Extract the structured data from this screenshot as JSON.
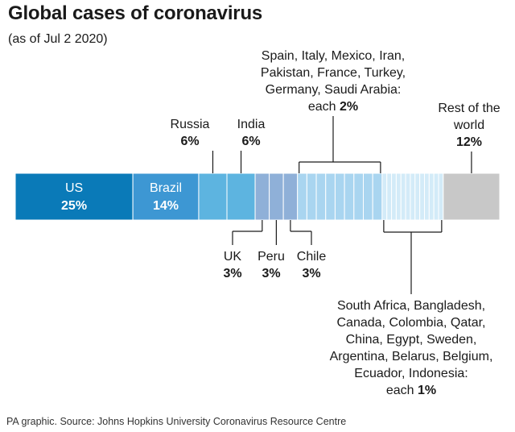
{
  "title": "Global cases of coronavirus",
  "subtitle": "(as of Jul 2 2020)",
  "footer": "PA graphic. Source: Johns Hopkins University Coronavirus Resource Centre",
  "colors": {
    "us": "#0a7ab8",
    "brazil": "#3d97d3",
    "mid": "#5db4e0",
    "uk_peru_chile": "#8fb0d8",
    "two_pct": "#a9d5f0",
    "one_pct": "#d3ebf8",
    "rest": "#c8c8c8",
    "line": "#1a1a1a"
  },
  "chart_data": {
    "type": "bar",
    "orientation": "stacked-horizontal",
    "unit": "%",
    "title": "Global cases of coronavirus",
    "subtitle": "(as of Jul 2 2020)",
    "segments": [
      {
        "name": "US",
        "value": 25,
        "label": "US",
        "value_label": "25%",
        "color_key": "us",
        "label_inside": true
      },
      {
        "name": "Brazil",
        "value": 14,
        "label": "Brazil",
        "value_label": "14%",
        "color_key": "brazil",
        "label_inside": true
      },
      {
        "name": "Russia",
        "value": 6,
        "color_key": "mid"
      },
      {
        "name": "India",
        "value": 6,
        "color_key": "mid"
      },
      {
        "name": "UK",
        "value": 3,
        "color_key": "uk_peru_chile"
      },
      {
        "name": "Peru",
        "value": 3,
        "color_key": "uk_peru_chile"
      },
      {
        "name": "Chile",
        "value": 3,
        "color_key": "uk_peru_chile"
      },
      {
        "name": "Spain",
        "value": 2,
        "color_key": "two_pct"
      },
      {
        "name": "Italy",
        "value": 2,
        "color_key": "two_pct"
      },
      {
        "name": "Mexico",
        "value": 2,
        "color_key": "two_pct"
      },
      {
        "name": "Iran",
        "value": 2,
        "color_key": "two_pct"
      },
      {
        "name": "Pakistan",
        "value": 2,
        "color_key": "two_pct"
      },
      {
        "name": "France",
        "value": 2,
        "color_key": "two_pct"
      },
      {
        "name": "Turkey",
        "value": 2,
        "color_key": "two_pct"
      },
      {
        "name": "Germany",
        "value": 2,
        "color_key": "two_pct"
      },
      {
        "name": "Saudi Arabia",
        "value": 2,
        "color_key": "two_pct"
      },
      {
        "name": "South Africa",
        "value": 1,
        "color_key": "one_pct"
      },
      {
        "name": "Bangladesh",
        "value": 1,
        "color_key": "one_pct"
      },
      {
        "name": "Canada",
        "value": 1,
        "color_key": "one_pct"
      },
      {
        "name": "Colombia",
        "value": 1,
        "color_key": "one_pct"
      },
      {
        "name": "Qatar",
        "value": 1,
        "color_key": "one_pct"
      },
      {
        "name": "China",
        "value": 1,
        "color_key": "one_pct"
      },
      {
        "name": "Egypt",
        "value": 1,
        "color_key": "one_pct"
      },
      {
        "name": "Sweden",
        "value": 1,
        "color_key": "one_pct"
      },
      {
        "name": "Argentina",
        "value": 1,
        "color_key": "one_pct"
      },
      {
        "name": "Belarus",
        "value": 1,
        "color_key": "one_pct"
      },
      {
        "name": "Belgium",
        "value": 1,
        "color_key": "one_pct"
      },
      {
        "name": "Ecuador",
        "value": 1,
        "color_key": "one_pct"
      },
      {
        "name": "Indonesia",
        "value": 1,
        "color_key": "one_pct"
      },
      {
        "name": "Rest of the world",
        "value": 12,
        "color_key": "rest"
      }
    ],
    "callouts": [
      {
        "id": "russia",
        "lines": [
          "Russia"
        ],
        "value_label": "6%",
        "position": "above",
        "segments": [
          "Russia"
        ],
        "connector": "single"
      },
      {
        "id": "india",
        "lines": [
          "India"
        ],
        "value_label": "6%",
        "position": "above",
        "segments": [
          "India"
        ],
        "connector": "single"
      },
      {
        "id": "two-pct",
        "lines": [
          "Spain, Italy, Mexico, Iran,",
          "Pakistan, France, Turkey,",
          "Germany, Saudi Arabia:",
          "each"
        ],
        "value_label": "2%",
        "position": "above",
        "segments": [
          "Spain",
          "Saudi Arabia"
        ],
        "connector": "bracket"
      },
      {
        "id": "rest",
        "lines": [
          "Rest of the",
          "world"
        ],
        "value_label": "12%",
        "position": "above",
        "segments": [
          "Rest of the world"
        ],
        "connector": "single"
      },
      {
        "id": "uk",
        "lines": [
          "UK"
        ],
        "value_label": "3%",
        "position": "below",
        "segments": [
          "UK"
        ],
        "connector": "elbow"
      },
      {
        "id": "peru",
        "lines": [
          "Peru"
        ],
        "value_label": "3%",
        "position": "below",
        "segments": [
          "Peru"
        ],
        "connector": "single"
      },
      {
        "id": "chile",
        "lines": [
          "Chile"
        ],
        "value_label": "3%",
        "position": "below",
        "segments": [
          "Chile"
        ],
        "connector": "elbow"
      },
      {
        "id": "one-pct",
        "lines": [
          "South Africa, Bangladesh,",
          "Canada, Colombia, Qatar,",
          "China, Egypt, Sweden,",
          "Argentina, Belarus, Belgium,",
          "Ecuador, Indonesia:",
          "each"
        ],
        "value_label": "1%",
        "position": "below",
        "segments": [
          "South Africa",
          "Indonesia"
        ],
        "connector": "bracket"
      }
    ]
  }
}
